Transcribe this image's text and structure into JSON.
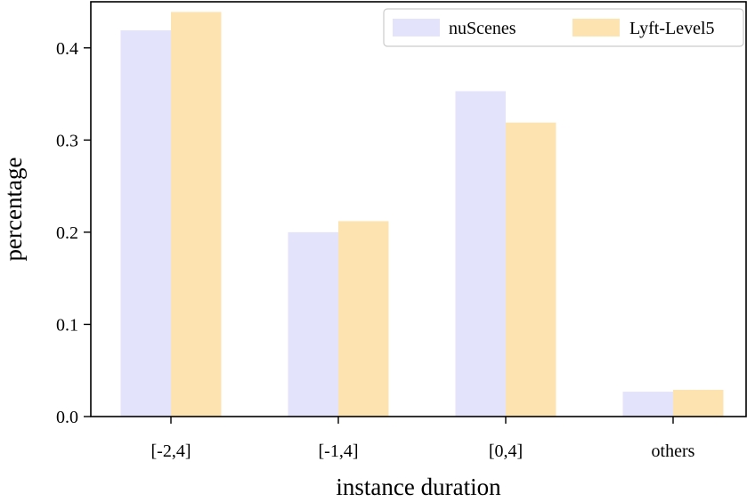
{
  "chart_data": {
    "type": "bar",
    "title": "",
    "xlabel": "instance duration",
    "ylabel": "percentage",
    "categories": [
      "[-2,4]",
      "[-1,4]",
      "[0,4]",
      "others"
    ],
    "ylim": [
      0,
      0.45
    ],
    "yticks": [
      "0.0",
      "0.1",
      "0.2",
      "0.3",
      "0.4"
    ],
    "ytick_values": [
      0.0,
      0.1,
      0.2,
      0.3,
      0.4
    ],
    "legend_position": "top-right",
    "series": [
      {
        "name": "nuScenes",
        "color": "#e3e3fb",
        "values": [
          0.419,
          0.2,
          0.353,
          0.027
        ]
      },
      {
        "name": "Lyft-Level5",
        "color": "#fde3b0",
        "values": [
          0.439,
          0.212,
          0.319,
          0.029
        ]
      }
    ]
  }
}
